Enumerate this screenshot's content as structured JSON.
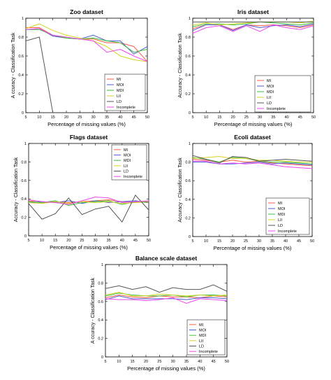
{
  "chart_data": [
    {
      "type": "line",
      "title": "Zoo dataset",
      "xlabel": "Percentage of missing values (%)",
      "ylabel": "A ccuracy - Classification Task",
      "x": [
        5,
        10,
        15,
        20,
        25,
        30,
        35,
        40,
        45,
        50
      ],
      "xlim": [
        5,
        50
      ],
      "ylim": [
        0,
        1
      ],
      "xticks": [
        5,
        10,
        15,
        20,
        25,
        30,
        35,
        40,
        45,
        50
      ],
      "yticks": [
        0,
        0.2,
        0.4,
        0.6,
        0.8,
        1.0
      ],
      "ytick_labels": [
        "0",
        "0.2",
        "0.4",
        "0.6",
        "0.8",
        "1"
      ],
      "legend_position": "lower-right",
      "series": [
        {
          "name": "MI",
          "color": "#ff5b45",
          "values": [
            0.9,
            0.9,
            0.82,
            0.79,
            0.78,
            0.78,
            0.74,
            0.74,
            0.7,
            0.54
          ]
        },
        {
          "name": "MOI",
          "color": "#4f5bd6",
          "values": [
            0.88,
            0.89,
            0.81,
            0.79,
            0.78,
            0.82,
            0.76,
            0.76,
            0.62,
            0.7
          ]
        },
        {
          "name": "MDI",
          "color": "#3cbf3c",
          "values": [
            0.88,
            0.88,
            0.82,
            0.79,
            0.78,
            0.79,
            0.76,
            0.74,
            0.64,
            0.67
          ]
        },
        {
          "name": "LII",
          "color": "#d4d422",
          "values": [
            0.89,
            0.94,
            0.87,
            0.82,
            0.79,
            0.76,
            0.7,
            0.6,
            0.56,
            0.54
          ]
        },
        {
          "name": "LD",
          "color": "#555555",
          "values": [
            0.76,
            0.8,
            0.0,
            null,
            null,
            null,
            null,
            null,
            null,
            null
          ]
        },
        {
          "name": "Incomplete",
          "color": "#ee44ee",
          "values": [
            0.88,
            0.89,
            0.82,
            0.8,
            0.78,
            0.76,
            0.64,
            0.67,
            0.6,
            0.54
          ]
        }
      ]
    },
    {
      "type": "line",
      "title": "Iris dataset",
      "xlabel": "Percentage of missing values (%)",
      "ylabel": "Accuracy - Classification Task",
      "x": [
        5,
        10,
        15,
        20,
        25,
        30,
        35,
        40,
        45,
        50
      ],
      "xlim": [
        5,
        50
      ],
      "ylim": [
        0,
        1
      ],
      "xticks": [
        5,
        10,
        15,
        20,
        25,
        30,
        35,
        40,
        45,
        50
      ],
      "yticks": [
        0,
        0.2,
        0.4,
        0.6,
        0.8,
        1.0
      ],
      "ytick_labels": [
        "0",
        "0.2",
        "0.4",
        "0.6",
        "0.8",
        "1"
      ],
      "legend_position": "lower-right",
      "series": [
        {
          "name": "MI",
          "color": "#ff5b45",
          "values": [
            0.89,
            0.93,
            0.93,
            0.88,
            0.93,
            0.92,
            0.93,
            0.92,
            0.9,
            0.93
          ]
        },
        {
          "name": "MOI",
          "color": "#4f5bd6",
          "values": [
            0.87,
            0.93,
            0.93,
            0.87,
            0.93,
            0.9,
            0.92,
            0.93,
            0.91,
            0.94
          ]
        },
        {
          "name": "MDI",
          "color": "#3cbf3c",
          "values": [
            0.91,
            0.94,
            0.94,
            0.93,
            0.94,
            0.96,
            0.95,
            0.94,
            0.93,
            0.95
          ]
        },
        {
          "name": "LII",
          "color": "#d4d422",
          "values": [
            0.93,
            0.95,
            0.93,
            0.94,
            0.95,
            0.96,
            0.96,
            0.96,
            0.95,
            0.97
          ]
        },
        {
          "name": "LD",
          "color": "#555555",
          "values": [
            0.96,
            0.96,
            0.96,
            0.96,
            0.96,
            0.96,
            0.96,
            0.96,
            0.96,
            0.96
          ]
        },
        {
          "name": "Incomplete",
          "color": "#ee44ee",
          "values": [
            0.84,
            0.9,
            0.92,
            0.86,
            0.92,
            0.86,
            0.93,
            0.9,
            0.88,
            0.92
          ]
        }
      ]
    },
    {
      "type": "line",
      "title": "Flags dataset",
      "xlabel": "Percentage of missing values (%)",
      "ylabel": "Accuracy - Classification Task",
      "x": [
        5,
        10,
        15,
        20,
        25,
        30,
        35,
        40,
        45,
        50
      ],
      "xlim": [
        5,
        50
      ],
      "ylim": [
        0,
        1
      ],
      "xticks": [
        5,
        10,
        15,
        20,
        25,
        30,
        35,
        40,
        45,
        50
      ],
      "yticks": [
        0,
        0.2,
        0.4,
        0.6,
        0.8,
        1.0
      ],
      "ytick_labels": [
        "0",
        "0.2",
        "0.4",
        "0.6",
        "0.8",
        "1"
      ],
      "legend_position": "top-right",
      "series": [
        {
          "name": "MI",
          "color": "#ff5b45",
          "values": [
            0.38,
            0.36,
            0.37,
            0.36,
            0.37,
            0.38,
            0.39,
            0.37,
            0.36,
            0.37
          ]
        },
        {
          "name": "MOI",
          "color": "#4f5bd6",
          "values": [
            0.36,
            0.37,
            0.36,
            0.38,
            0.35,
            0.38,
            0.36,
            0.37,
            0.38,
            0.36
          ]
        },
        {
          "name": "MDI",
          "color": "#3cbf3c",
          "values": [
            0.37,
            0.36,
            0.38,
            0.33,
            0.36,
            0.37,
            0.38,
            0.34,
            0.37,
            0.36
          ]
        },
        {
          "name": "LII",
          "color": "#d4d422",
          "values": [
            0.36,
            0.35,
            0.37,
            0.35,
            0.37,
            0.36,
            0.37,
            0.35,
            0.36,
            0.38
          ]
        },
        {
          "name": "LD",
          "color": "#555555",
          "values": [
            0.35,
            0.18,
            0.24,
            0.41,
            0.23,
            0.29,
            0.32,
            0.15,
            0.44,
            0.28
          ]
        },
        {
          "name": "Incomplete",
          "color": "#ee44ee",
          "values": [
            0.39,
            0.37,
            0.36,
            0.34,
            0.38,
            0.42,
            0.41,
            0.36,
            0.37,
            0.38
          ]
        }
      ]
    },
    {
      "type": "line",
      "title": "Ecoli dataset",
      "xlabel": "Percentage of missing values (%)",
      "ylabel": "Accuracy - Classification Task",
      "x": [
        5,
        10,
        15,
        20,
        25,
        30,
        35,
        40,
        45,
        50
      ],
      "xlim": [
        5,
        50
      ],
      "ylim": [
        0,
        1
      ],
      "xticks": [
        5,
        10,
        15,
        20,
        25,
        30,
        35,
        40,
        45,
        50
      ],
      "yticks": [
        0,
        0.2,
        0.4,
        0.6,
        0.8,
        1.0
      ],
      "ytick_labels": [
        "0",
        "0.2",
        "0.4",
        "0.6",
        "0.8",
        "1"
      ],
      "legend_position": "lower-right",
      "series": [
        {
          "name": "MI",
          "color": "#ff5b45",
          "values": [
            0.83,
            0.82,
            0.8,
            0.82,
            0.8,
            0.81,
            0.79,
            0.78,
            0.77,
            0.76
          ]
        },
        {
          "name": "MOI",
          "color": "#4f5bd6",
          "values": [
            0.8,
            0.8,
            0.78,
            0.78,
            0.79,
            0.8,
            0.78,
            0.79,
            0.78,
            0.77
          ]
        },
        {
          "name": "MDI",
          "color": "#3cbf3c",
          "values": [
            0.85,
            0.83,
            0.8,
            0.85,
            0.84,
            0.81,
            0.8,
            0.8,
            0.79,
            0.78
          ]
        },
        {
          "name": "LII",
          "color": "#d4d422",
          "values": [
            0.84,
            0.85,
            0.86,
            0.84,
            0.84,
            0.82,
            0.82,
            0.81,
            0.8,
            0.8
          ]
        },
        {
          "name": "LD",
          "color": "#555555",
          "values": [
            0.87,
            0.83,
            0.79,
            0.86,
            0.85,
            0.81,
            0.82,
            0.83,
            0.82,
            0.81
          ]
        },
        {
          "name": "Incomplete",
          "color": "#ee44ee",
          "values": [
            0.81,
            0.81,
            0.78,
            0.79,
            0.78,
            0.79,
            0.77,
            0.75,
            0.74,
            0.73
          ]
        }
      ]
    },
    {
      "type": "line",
      "title": "Balance scale dataset",
      "xlabel": "Percentage of missing values (%)",
      "ylabel": "A ccuracy - Classification Task",
      "x": [
        5,
        10,
        15,
        20,
        25,
        30,
        35,
        40,
        45,
        50
      ],
      "xlim": [
        5,
        50
      ],
      "ylim": [
        0,
        1
      ],
      "xticks": [
        5,
        10,
        15,
        20,
        25,
        30,
        35,
        40,
        45,
        50
      ],
      "yticks": [
        0,
        0.2,
        0.4,
        0.6,
        0.8,
        1.0
      ],
      "ytick_labels": [
        "0",
        "0.2",
        "0.4",
        "0.6",
        "0.8",
        "1"
      ],
      "legend_position": "lower-right",
      "series": [
        {
          "name": "MI",
          "color": "#ff5b45",
          "values": [
            0.64,
            0.67,
            0.65,
            0.64,
            0.66,
            0.65,
            0.65,
            0.64,
            0.66,
            0.65
          ]
        },
        {
          "name": "MOI",
          "color": "#4f5bd6",
          "values": [
            0.62,
            0.66,
            0.63,
            0.63,
            0.63,
            0.63,
            0.62,
            0.64,
            0.64,
            0.63
          ]
        },
        {
          "name": "MDI",
          "color": "#3cbf3c",
          "values": [
            0.66,
            0.69,
            0.67,
            0.66,
            0.66,
            0.67,
            0.65,
            0.67,
            0.67,
            0.66
          ]
        },
        {
          "name": "LII",
          "color": "#d4d422",
          "values": [
            0.67,
            0.7,
            0.66,
            0.66,
            0.68,
            0.67,
            0.66,
            0.67,
            0.66,
            0.67
          ]
        },
        {
          "name": "LD",
          "color": "#555555",
          "values": [
            0.74,
            0.77,
            0.73,
            0.76,
            0.7,
            0.75,
            0.73,
            0.73,
            0.78,
            0.71
          ]
        },
        {
          "name": "Incomplete",
          "color": "#ee44ee",
          "values": [
            0.63,
            0.62,
            0.62,
            0.61,
            0.62,
            0.64,
            0.58,
            0.63,
            0.62,
            0.61
          ]
        }
      ]
    }
  ]
}
